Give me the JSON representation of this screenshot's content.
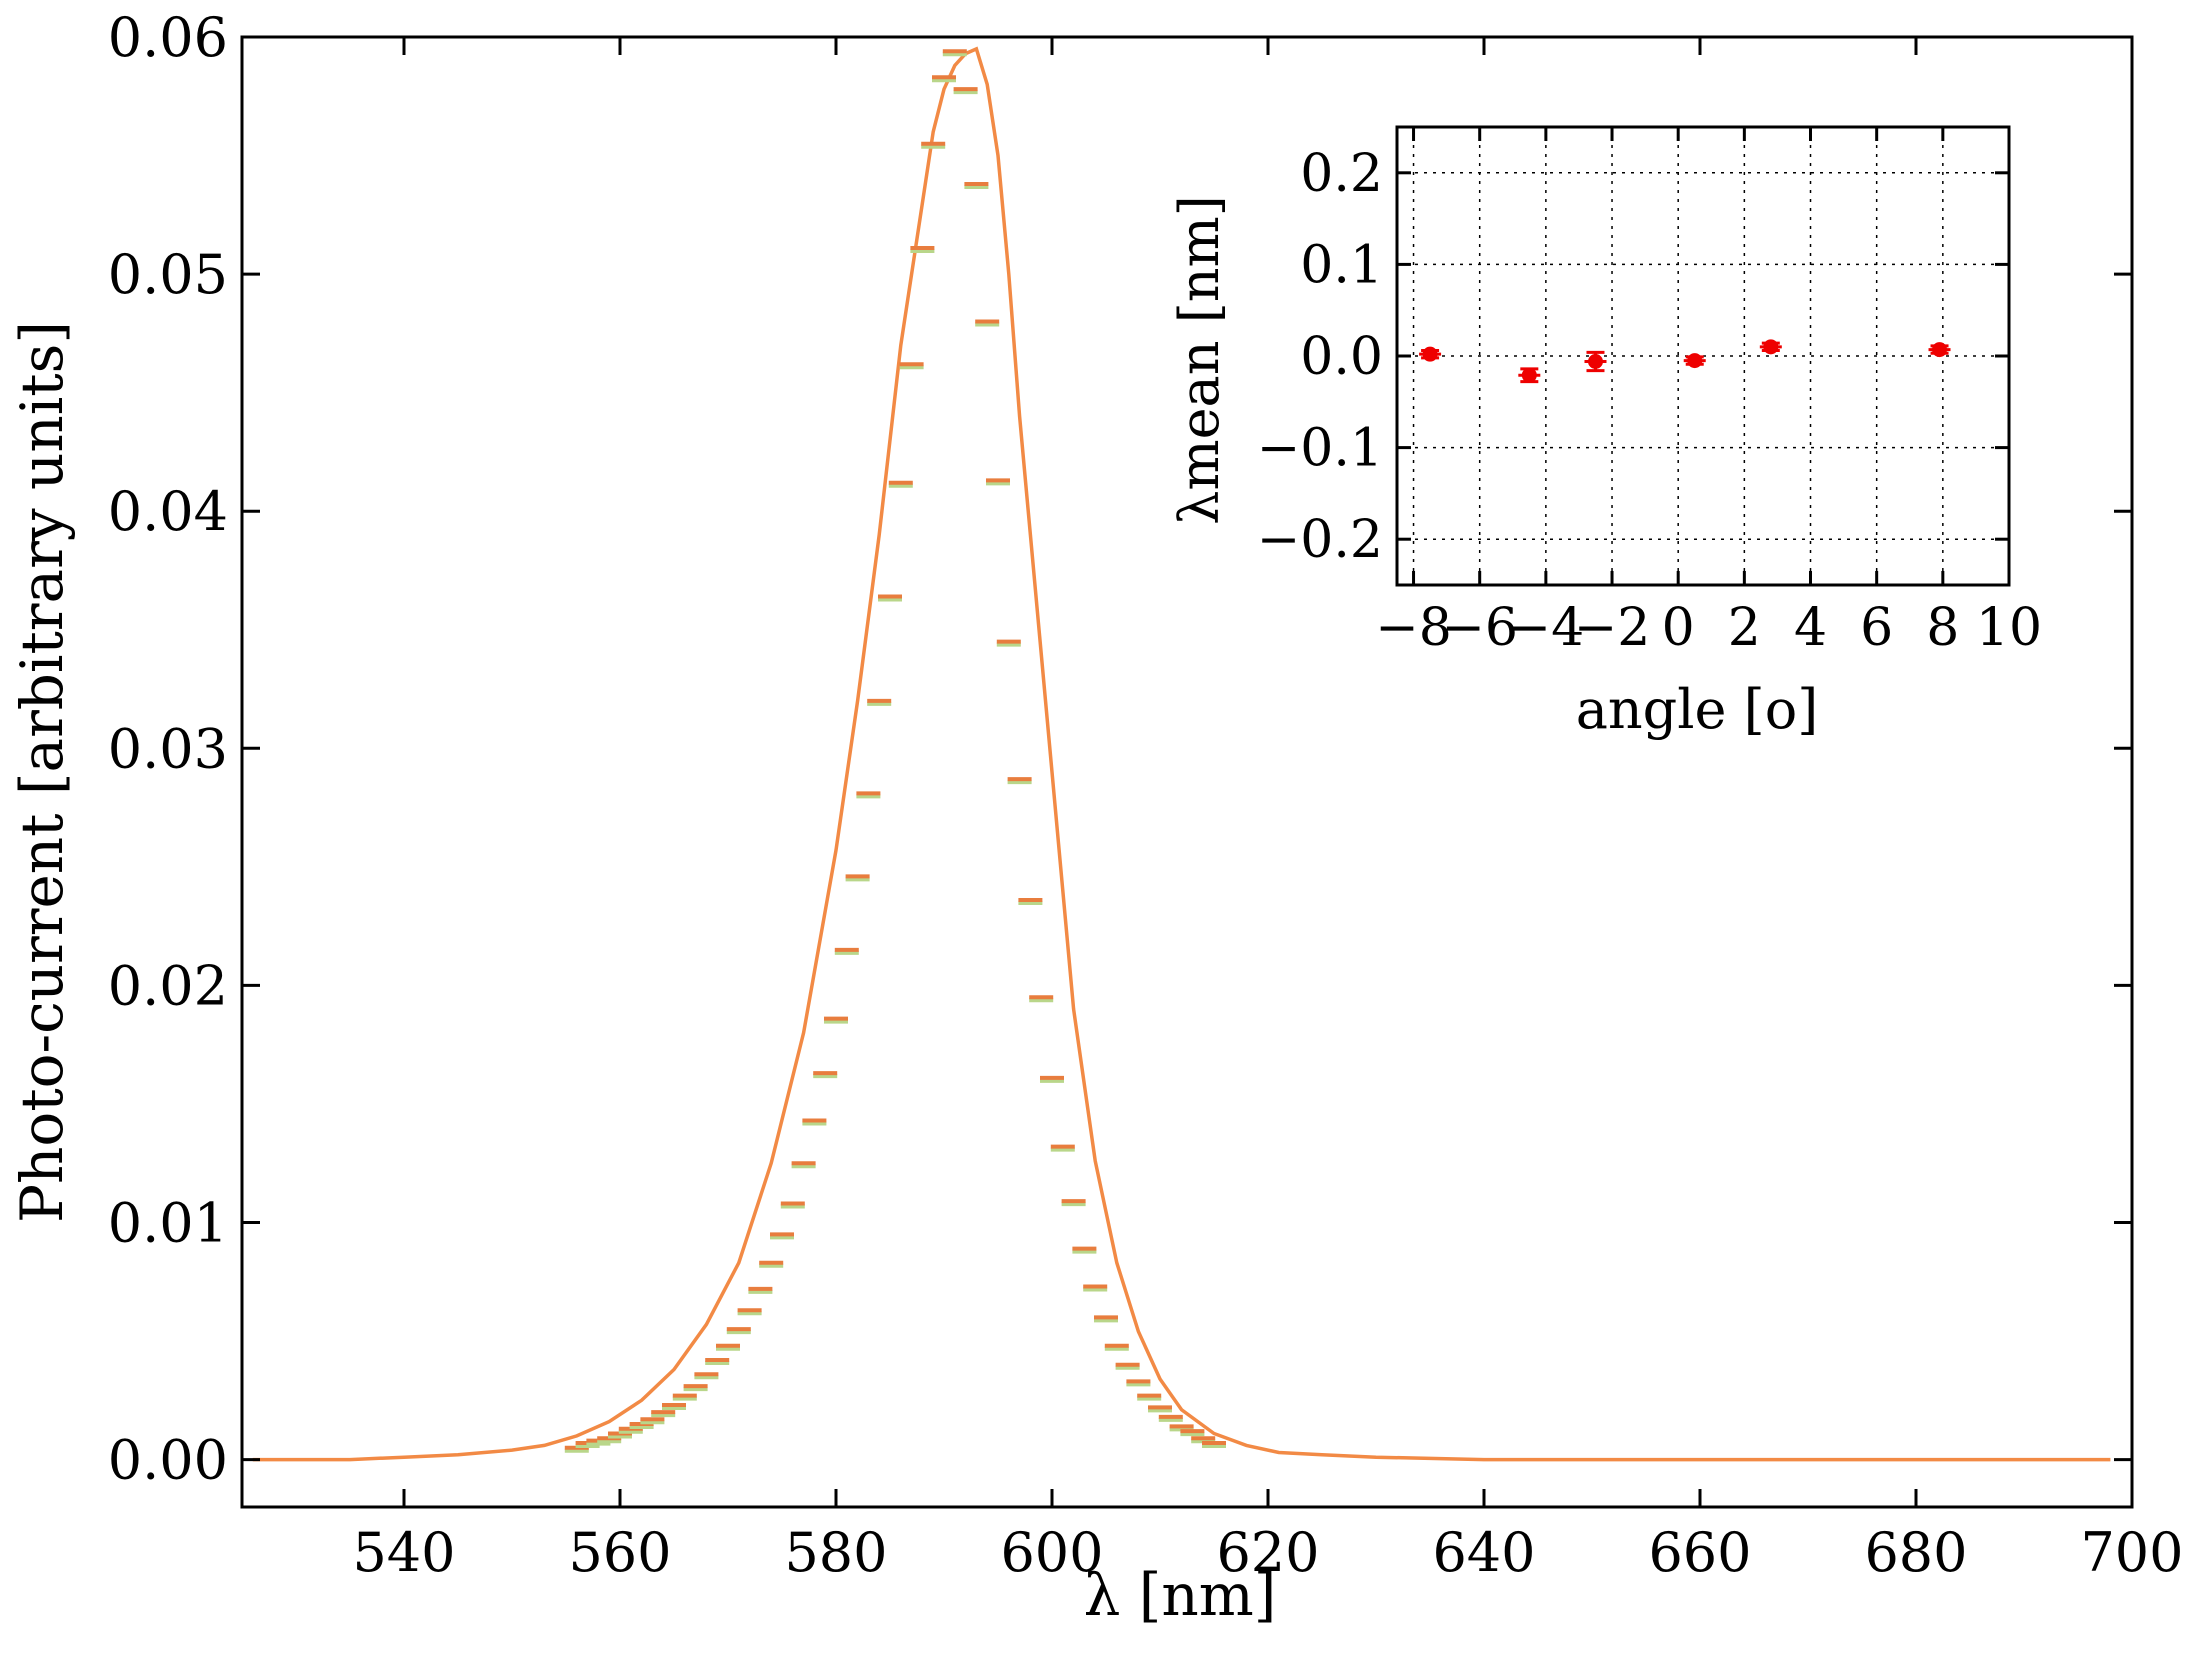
{
  "chart_data": [
    {
      "type": "line",
      "xlabel": "λ [nm]",
      "ylabel": "Photo-current [arbitrary units]",
      "xlim": [
        525,
        700
      ],
      "ylim": [
        -0.002,
        0.06
      ],
      "xticks": [
        540,
        560,
        580,
        600,
        620,
        640,
        660,
        680,
        700
      ],
      "xtick_labels": [
        "540",
        "560",
        "580",
        "600",
        "620",
        "640",
        "660",
        "680",
        "700"
      ],
      "yticks": [
        0.0,
        0.01,
        0.02,
        0.03,
        0.04,
        0.05,
        0.06
      ],
      "ytick_labels": [
        "0.00",
        "0.01",
        "0.02",
        "0.03",
        "0.04",
        "0.05",
        "0.06"
      ],
      "grid": false,
      "colors": {
        "fit_line": "#f28a45",
        "markers": "#e87d3e",
        "marker_shadow": "#b9d68a",
        "axes": "#000000"
      },
      "series": [
        {
          "kind": "fit",
          "x": [
            526,
            530,
            535,
            540,
            545,
            550,
            553,
            556,
            559,
            562,
            565,
            568,
            571,
            574,
            577,
            580,
            582,
            584,
            586,
            588,
            589,
            590,
            591,
            592,
            593,
            594,
            595,
            596,
            597,
            598,
            600,
            602,
            604,
            606,
            608,
            610,
            612,
            615,
            618,
            621,
            625,
            630,
            640,
            650,
            660,
            670,
            680,
            690,
            698
          ],
          "values": [
            0.0,
            0.0,
            0.0,
            0.0001,
            0.0002,
            0.0004,
            0.0006,
            0.001,
            0.0016,
            0.0025,
            0.0038,
            0.0057,
            0.0083,
            0.0125,
            0.018,
            0.0257,
            0.032,
            0.039,
            0.047,
            0.053,
            0.056,
            0.0578,
            0.0588,
            0.0593,
            0.0595,
            0.058,
            0.055,
            0.05,
            0.044,
            0.039,
            0.029,
            0.019,
            0.0126,
            0.0083,
            0.0054,
            0.0034,
            0.0021,
            0.0011,
            0.0006,
            0.0003,
            0.0002,
            0.0001,
            0.0,
            0.0,
            0.0,
            0.0,
            0.0,
            0.0,
            0.0
          ]
        },
        {
          "kind": "measurements",
          "x": [
            556,
            557,
            558,
            559,
            560,
            561,
            562,
            563,
            564,
            565,
            566,
            567,
            568,
            569,
            570,
            571,
            572,
            573,
            574,
            575,
            576,
            577,
            578,
            579,
            580,
            581,
            582,
            583,
            584,
            585,
            586,
            587,
            588,
            589,
            590,
            591,
            592,
            593,
            594,
            595,
            596,
            597,
            598,
            599,
            600,
            601,
            602,
            603,
            604,
            605,
            606,
            607,
            608,
            609,
            610,
            611,
            612,
            613,
            614,
            615
          ],
          "values": [
            0.0005,
            0.0007,
            0.0008,
            0.0009,
            0.0011,
            0.0013,
            0.0015,
            0.0017,
            0.002,
            0.0023,
            0.0027,
            0.0031,
            0.0036,
            0.0042,
            0.0048,
            0.0055,
            0.0063,
            0.0072,
            0.0083,
            0.0095,
            0.0108,
            0.0125,
            0.0143,
            0.0163,
            0.0186,
            0.0215,
            0.0246,
            0.0281,
            0.032,
            0.0364,
            0.0412,
            0.0462,
            0.0511,
            0.0555,
            0.0583,
            0.0594,
            0.0578,
            0.0538,
            0.048,
            0.0413,
            0.0345,
            0.0287,
            0.0236,
            0.0195,
            0.0161,
            0.0132,
            0.0109,
            0.0089,
            0.0073,
            0.006,
            0.0048,
            0.004,
            0.0033,
            0.0027,
            0.0022,
            0.0018,
            0.0014,
            0.0012,
            0.0009,
            0.0007
          ]
        }
      ]
    },
    {
      "type": "scatter",
      "xlabel": "angle [o]",
      "ylabel": "λmean [nm]",
      "xlim": [
        -8.5,
        10
      ],
      "ylim": [
        -0.25,
        0.25
      ],
      "xticks": [
        -8,
        -6,
        -4,
        -2,
        0,
        2,
        4,
        6,
        8,
        10
      ],
      "xtick_labels": [
        "−8",
        "−6",
        "−4",
        "−2",
        "0",
        "2",
        "4",
        "6",
        "8",
        "10"
      ],
      "yticks": [
        -0.2,
        -0.1,
        0.0,
        0.1,
        0.2
      ],
      "ytick_labels": [
        "−0.2",
        "−0.1",
        "0.0",
        "0.1",
        "0.2"
      ],
      "grid": true,
      "colors": {
        "points": "#ee0000",
        "grid": "#000000"
      },
      "series": [
        {
          "x": [
            -7.5,
            -4.5,
            -2.5,
            0.5,
            2.8,
            7.9
          ],
          "values": [
            0.002,
            -0.021,
            -0.006,
            -0.005,
            0.01,
            0.007
          ],
          "errors": [
            0.004,
            0.007,
            0.01,
            0.004,
            0.004,
            0.004
          ]
        }
      ]
    }
  ]
}
